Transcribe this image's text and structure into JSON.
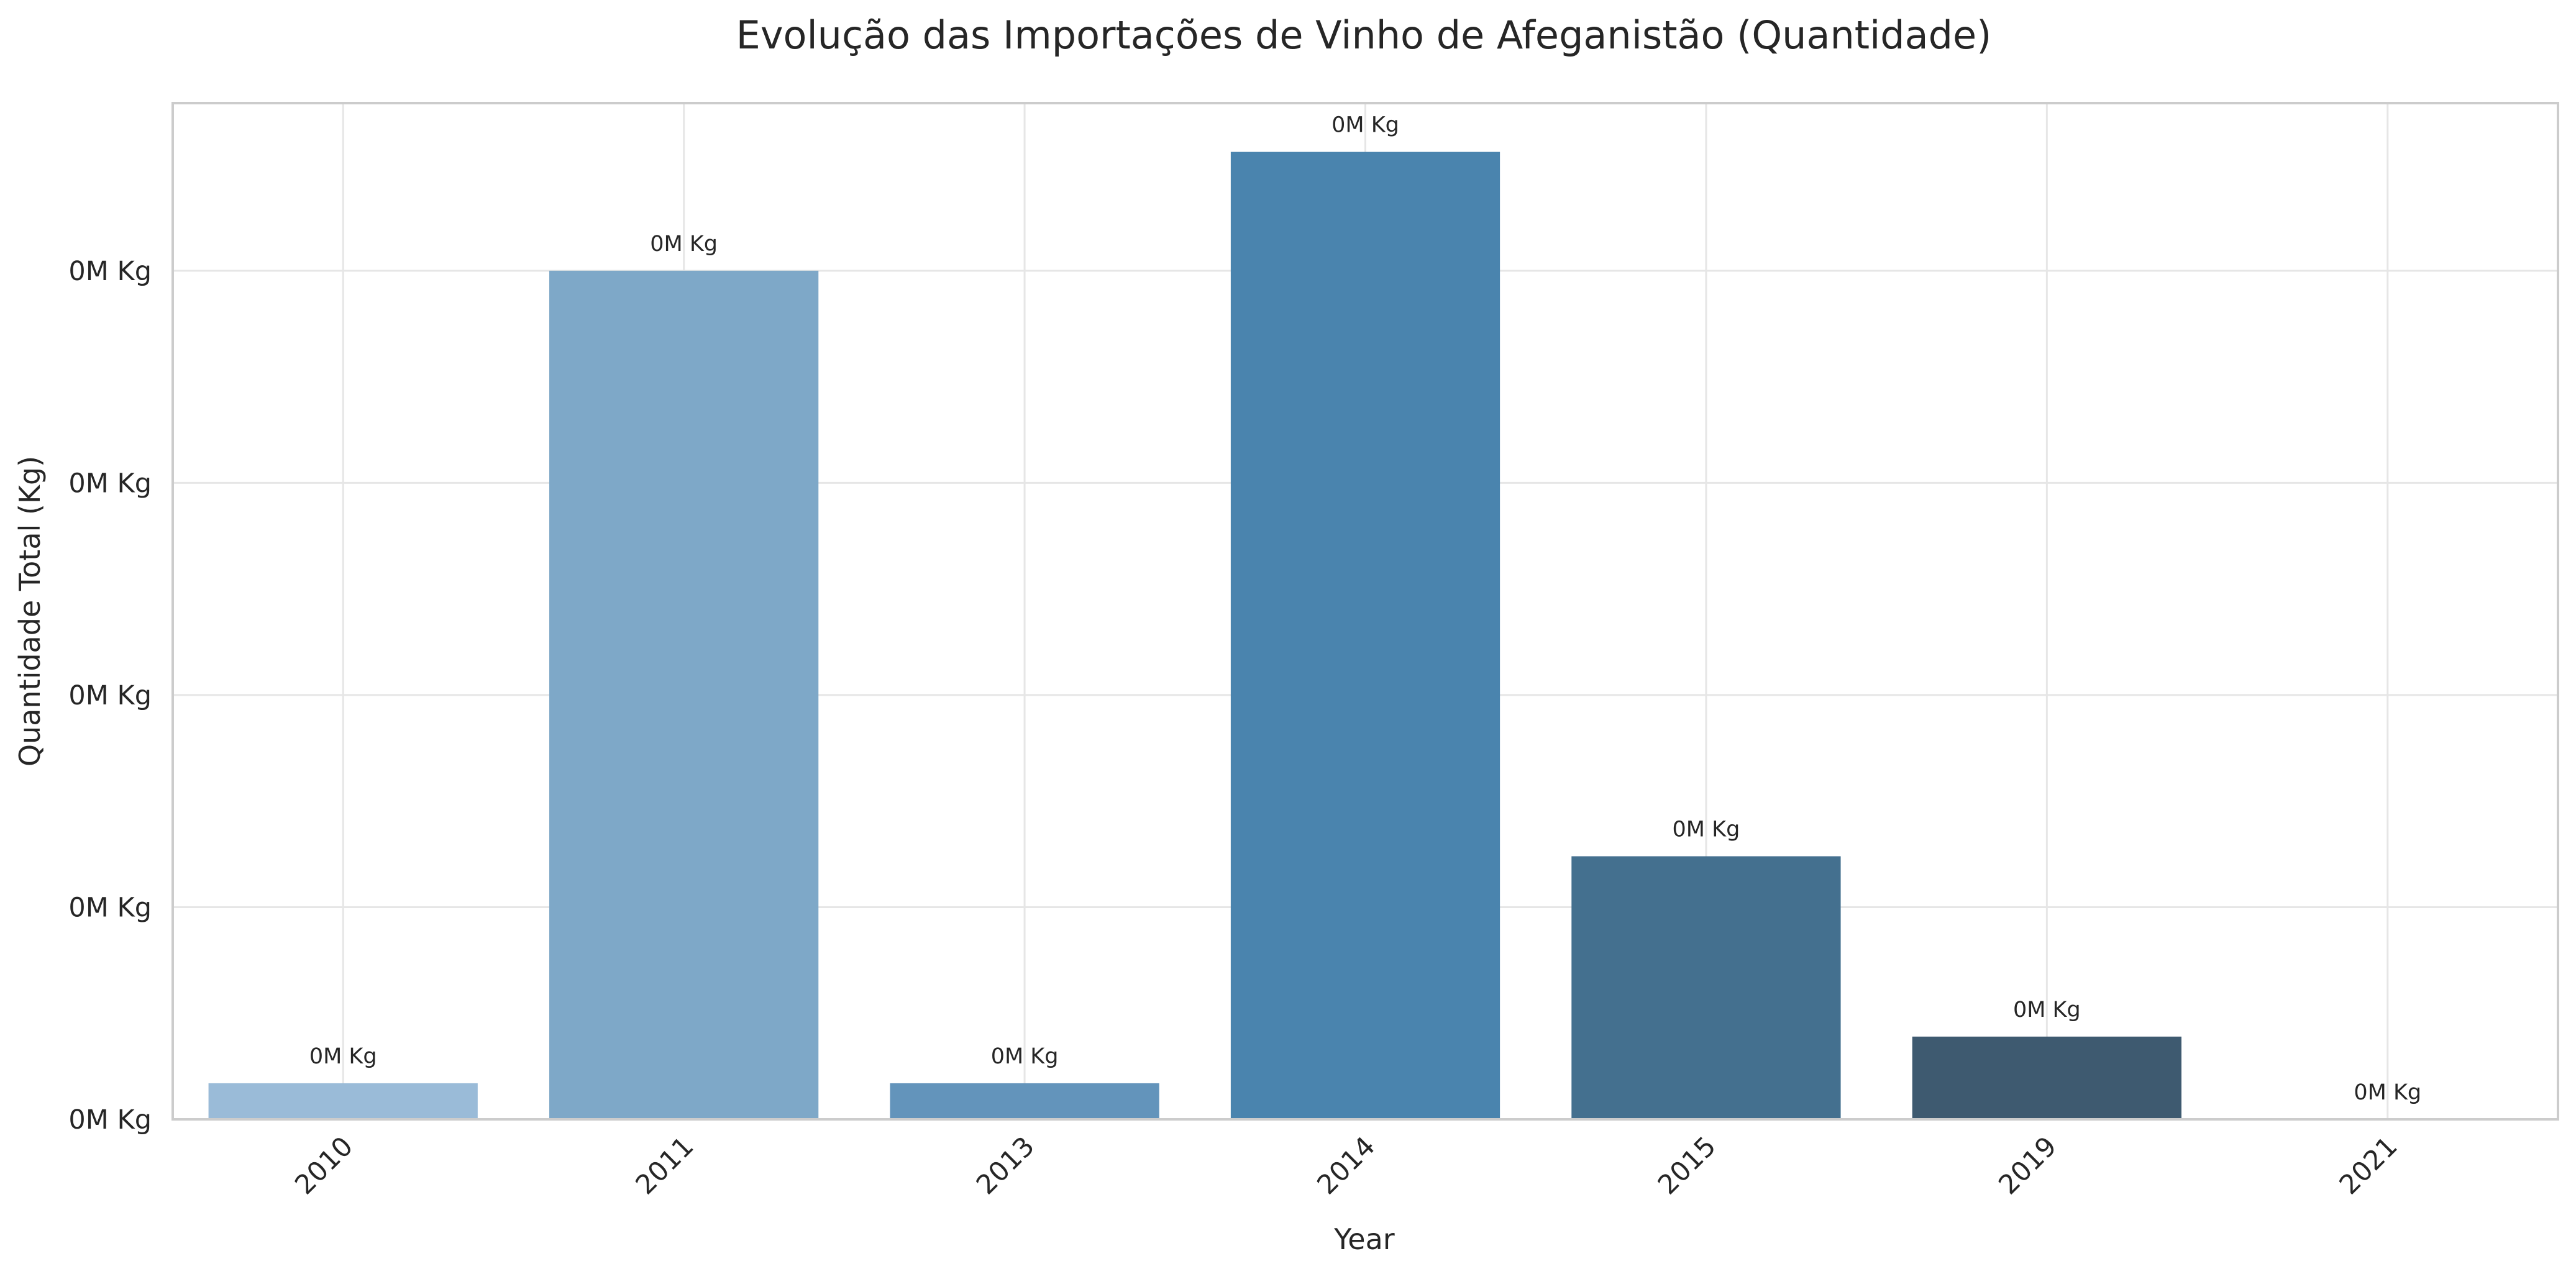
{
  "chart_data": {
    "type": "bar",
    "title": "Evolução das Importações de Vinho de Afeganistão (Quantidade)",
    "xlabel": "Year",
    "ylabel": "Quantidade Total (Kg)",
    "categories": [
      "2010",
      "2011",
      "2013",
      "2014",
      "2015",
      "2019",
      "2021"
    ],
    "values": [
      17,
      400,
      17,
      456,
      124,
      39,
      0
    ],
    "value_labels": [
      "0M Kg",
      "0M Kg",
      "0M Kg",
      "0M Kg",
      "0M Kg",
      "0M Kg",
      "0M Kg"
    ],
    "ylim": [
      0,
      479
    ],
    "yticks": [
      0,
      100,
      200,
      300,
      400
    ],
    "ytick_labels": [
      "0M Kg",
      "0M Kg",
      "0M Kg",
      "0M Kg",
      "0M Kg"
    ],
    "grid": true,
    "colors": [
      "#9abbd8",
      "#7ea8c8",
      "#6394bb",
      "#4a84ae",
      "#44708f",
      "#3e5a70",
      "#3a4d5c"
    ]
  }
}
